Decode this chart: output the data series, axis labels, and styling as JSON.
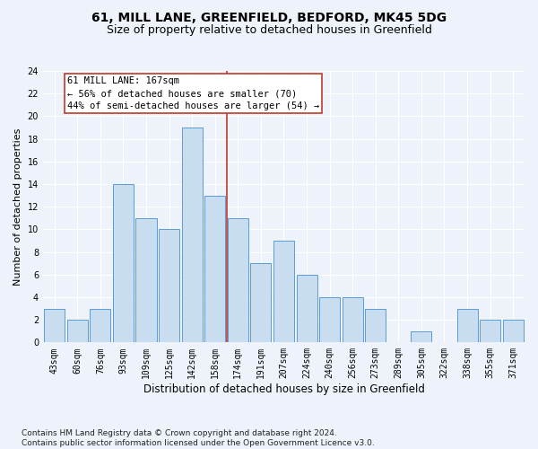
{
  "title1": "61, MILL LANE, GREENFIELD, BEDFORD, MK45 5DG",
  "title2": "Size of property relative to detached houses in Greenfield",
  "xlabel": "Distribution of detached houses by size in Greenfield",
  "ylabel": "Number of detached properties",
  "categories": [
    "43sqm",
    "60sqm",
    "76sqm",
    "93sqm",
    "109sqm",
    "125sqm",
    "142sqm",
    "158sqm",
    "174sqm",
    "191sqm",
    "207sqm",
    "224sqm",
    "240sqm",
    "256sqm",
    "273sqm",
    "289sqm",
    "305sqm",
    "322sqm",
    "338sqm",
    "355sqm",
    "371sqm"
  ],
  "values": [
    3,
    2,
    3,
    14,
    11,
    10,
    19,
    13,
    11,
    7,
    9,
    6,
    4,
    4,
    3,
    0,
    1,
    0,
    3,
    2,
    2
  ],
  "bar_color": "#c9ddf0",
  "bar_edge_color": "#5b9bd5",
  "vline_x_idx": 7.5,
  "vline_color": "#c0392b",
  "annotation_text": "61 MILL LANE: 167sqm\n← 56% of detached houses are smaller (70)\n44% of semi-detached houses are larger (54) →",
  "ylim": [
    0,
    24
  ],
  "yticks": [
    0,
    2,
    4,
    6,
    8,
    10,
    12,
    14,
    16,
    18,
    20,
    22,
    24
  ],
  "background_color": "#eef2fb",
  "grid_color": "#ffffff",
  "footer": "Contains HM Land Registry data © Crown copyright and database right 2024.\nContains public sector information licensed under the Open Government Licence v3.0.",
  "title1_fontsize": 10,
  "title2_fontsize": 9,
  "xlabel_fontsize": 8.5,
  "ylabel_fontsize": 8,
  "tick_fontsize": 7,
  "annot_fontsize": 7.5,
  "footer_fontsize": 6.5
}
